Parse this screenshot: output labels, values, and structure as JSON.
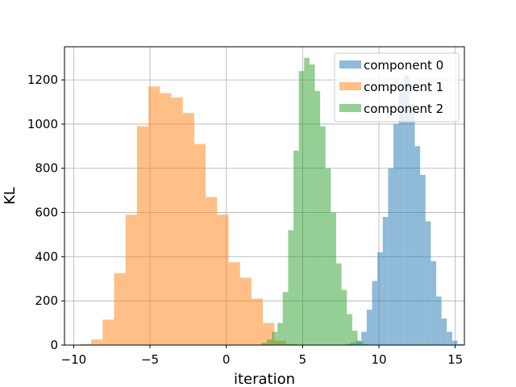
{
  "chart_data": {
    "type": "histogram",
    "title": "",
    "xlabel": "iteration",
    "ylabel": "KL",
    "xlim": [
      -10.6,
      15.6
    ],
    "ylim": [
      0,
      1350
    ],
    "xticks": [
      -10,
      -5,
      0,
      5,
      10,
      15
    ],
    "yticks": [
      0,
      200,
      400,
      600,
      800,
      1000,
      1200
    ],
    "grid": true,
    "legend_position": "top-right",
    "alpha": 0.5,
    "series": [
      {
        "name": "component 0",
        "color": "#1f77b4",
        "bin_start": 7.8,
        "bin_width": 0.35,
        "counts": [
          5,
          10,
          20,
          60,
          160,
          290,
          420,
          580,
          800,
          1000,
          1140,
          1220,
          1090,
          900,
          770,
          560,
          380,
          220,
          120,
          60,
          20,
          5
        ]
      },
      {
        "name": "component 1",
        "color": "#ff7f0e",
        "bin_start": -9.6,
        "bin_width": 0.75,
        "counts": [
          5,
          25,
          115,
          325,
          590,
          990,
          1170,
          1140,
          1120,
          1050,
          910,
          670,
          590,
          375,
          305,
          210,
          100,
          20,
          5
        ]
      },
      {
        "name": "component 2",
        "color": "#2ca02c",
        "bin_start": 2.3,
        "bin_width": 0.35,
        "counts": [
          10,
          25,
          60,
          100,
          240,
          520,
          880,
          1240,
          1300,
          1270,
          1150,
          990,
          800,
          600,
          370,
          250,
          140,
          65,
          15,
          5
        ]
      }
    ]
  }
}
